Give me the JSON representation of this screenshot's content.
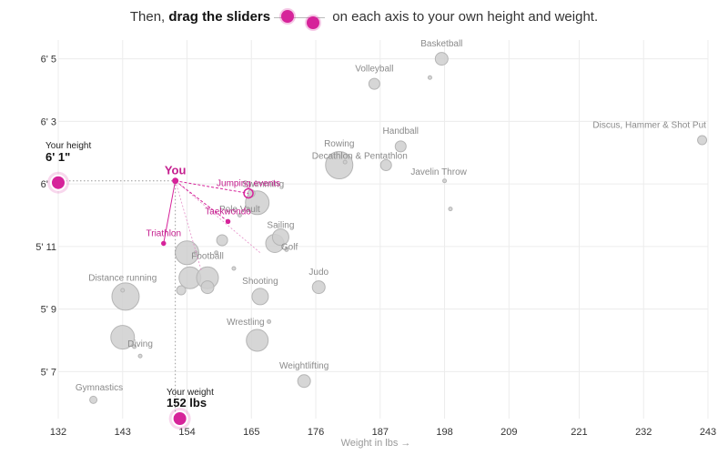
{
  "instruction": {
    "prefix": "Then, ",
    "bold": "drag the sliders",
    "suffix": " on each axis to your own height and weight."
  },
  "colors": {
    "accent": "#d6239a",
    "accent_text": "#c41e8e",
    "bubble_fill": "#cfcfcf",
    "bubble_stroke": "#b5b5b5",
    "grid": "#ececec"
  },
  "chart_data": {
    "type": "scatter",
    "xlabel": "Weight in lbs →",
    "ylabel": "",
    "x_ticks": [
      132,
      143,
      154,
      165,
      176,
      187,
      198,
      209,
      221,
      232,
      243
    ],
    "y_ticks": [
      {
        "label": "5' 7",
        "inches": 67
      },
      {
        "label": "5' 9",
        "inches": 69
      },
      {
        "label": "5' 11",
        "inches": 71
      },
      {
        "label": "6' 1",
        "inches": 73
      },
      {
        "label": "6' 3",
        "inches": 75
      },
      {
        "label": "6' 5",
        "inches": 77
      }
    ],
    "xlim": [
      132,
      243
    ],
    "ylim_inches": [
      65.5,
      77.6
    ],
    "grid": true,
    "bubbles": [
      {
        "w": 138,
        "h": 66.1,
        "r": 4
      },
      {
        "w": 143.5,
        "h": 69.4,
        "r": 15
      },
      {
        "w": 143,
        "h": 68.1,
        "r": 13
      },
      {
        "w": 145,
        "h": 67.8,
        "r": 2
      },
      {
        "w": 146,
        "h": 67.5,
        "r": 2
      },
      {
        "w": 143,
        "h": 69.6,
        "r": 2
      },
      {
        "w": 153,
        "h": 69.6,
        "r": 5
      },
      {
        "w": 154.5,
        "h": 70.0,
        "r": 12
      },
      {
        "w": 157.5,
        "h": 70.0,
        "r": 12
      },
      {
        "w": 154,
        "h": 70.8,
        "r": 13
      },
      {
        "w": 157.5,
        "h": 69.7,
        "r": 7
      },
      {
        "w": 155.5,
        "h": 70.8,
        "r": 2
      },
      {
        "w": 159,
        "h": 70.8,
        "r": 2
      },
      {
        "w": 160,
        "h": 71.2,
        "r": 6
      },
      {
        "w": 162,
        "h": 70.3,
        "r": 2
      },
      {
        "w": 165,
        "h": 72.7,
        "r": 4
      },
      {
        "w": 166,
        "h": 72.4,
        "r": 13
      },
      {
        "w": 163,
        "h": 72.0,
        "r": 2
      },
      {
        "w": 166.5,
        "h": 69.4,
        "r": 9
      },
      {
        "w": 166,
        "h": 68.0,
        "r": 12
      },
      {
        "w": 168,
        "h": 68.6,
        "r": 2
      },
      {
        "w": 170,
        "h": 71.3,
        "r": 9
      },
      {
        "w": 169,
        "h": 71.1,
        "r": 10
      },
      {
        "w": 171,
        "h": 70.9,
        "r": 2
      },
      {
        "w": 174,
        "h": 66.7,
        "r": 7
      },
      {
        "w": 176.5,
        "h": 69.7,
        "r": 7
      },
      {
        "w": 180,
        "h": 73.6,
        "r": 15
      },
      {
        "w": 181,
        "h": 73.7,
        "r": 2
      },
      {
        "w": 188,
        "h": 73.6,
        "r": 6
      },
      {
        "w": 190.5,
        "h": 74.2,
        "r": 6
      },
      {
        "w": 186,
        "h": 76.2,
        "r": 6
      },
      {
        "w": 195.5,
        "h": 76.4,
        "r": 2
      },
      {
        "w": 198,
        "h": 73.1,
        "r": 2
      },
      {
        "w": 199,
        "h": 72.2,
        "r": 2
      },
      {
        "w": 197.5,
        "h": 77.0,
        "r": 7
      },
      {
        "w": 242,
        "h": 74.4,
        "r": 5
      }
    ],
    "labels": [
      {
        "text": "Basketball",
        "w": 197.5,
        "h": 77.4
      },
      {
        "text": "Volleyball",
        "w": 186,
        "h": 76.6
      },
      {
        "text": "Handball",
        "w": 190.5,
        "h": 74.6
      },
      {
        "text": "Discus, Hammer & Shot Put",
        "w": 233,
        "h": 74.8
      },
      {
        "text": "Rowing",
        "w": 180,
        "h": 74.2
      },
      {
        "text": "Decathlon & Pentathlon",
        "w": 183.5,
        "h": 73.8
      },
      {
        "text": "Javelin Throw",
        "w": 197,
        "h": 73.3
      },
      {
        "text": "Swimming",
        "w": 167,
        "h": 72.9
      },
      {
        "text": "Pole Vault",
        "w": 163,
        "h": 72.1
      },
      {
        "text": "Sailing",
        "w": 170,
        "h": 71.6
      },
      {
        "text": "Golf",
        "w": 171.5,
        "h": 70.9
      },
      {
        "text": "Football",
        "w": 157.5,
        "h": 70.6
      },
      {
        "text": "Distance running",
        "w": 143,
        "h": 69.9
      },
      {
        "text": "Judo",
        "w": 176.5,
        "h": 70.1
      },
      {
        "text": "Shooting",
        "w": 166.5,
        "h": 69.8
      },
      {
        "text": "Wrestling",
        "w": 164,
        "h": 68.5
      },
      {
        "text": "Diving",
        "w": 146,
        "h": 67.8
      },
      {
        "text": "Weightlifting",
        "w": 174,
        "h": 67.1
      },
      {
        "text": "Gymnastics",
        "w": 139,
        "h": 66.4
      }
    ],
    "highlighted": [
      {
        "text": "Jumping events",
        "w": 164.5,
        "h": 72.7
      },
      {
        "text": "Taekwondo",
        "w": 161,
        "h": 71.8
      },
      {
        "text": "Triathlon",
        "w": 150,
        "h": 71.1
      }
    ],
    "you": {
      "label": "You",
      "w": 152,
      "h": 73.1
    }
  },
  "height_slider": {
    "caption": "Your height",
    "value": "6' 1\""
  },
  "weight_slider": {
    "caption": "Your weight",
    "value": "152 lbs"
  }
}
